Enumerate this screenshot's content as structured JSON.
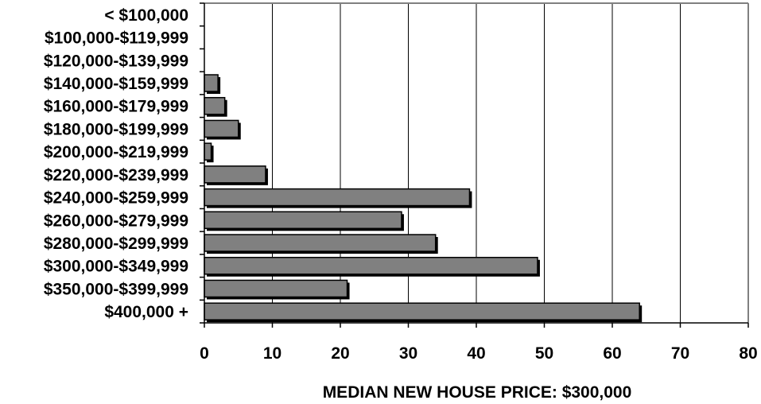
{
  "chart_data": {
    "type": "bar",
    "orientation": "horizontal",
    "categories": [
      "< $100,000",
      "$100,000-$119,999",
      "$120,000-$139,999",
      "$140,000-$159,999",
      "$160,000-$179,999",
      "$180,000-$199,999",
      "$200,000-$219,999",
      "$220,000-$239,999",
      "$240,000-$259,999",
      "$260,000-$279,999",
      "$280,000-$299,999",
      "$300,000-$349,999",
      "$350,000-$399,999",
      "$400,000 +"
    ],
    "values": [
      0,
      0,
      0,
      2,
      3,
      5,
      1,
      9,
      39,
      29,
      34,
      49,
      21,
      64
    ],
    "xlabel": "MEDIAN NEW HOUSE PRICE:  $300,000",
    "xlim": [
      0,
      80
    ],
    "xticks": [
      0,
      10,
      20,
      30,
      40,
      50,
      60,
      70,
      80
    ],
    "grid": "vertical",
    "legend": "none",
    "colors": {
      "bar_fill": "#808080",
      "bar_shadow": "#000000",
      "grid": "#000000",
      "plot_border": "#808080"
    }
  }
}
